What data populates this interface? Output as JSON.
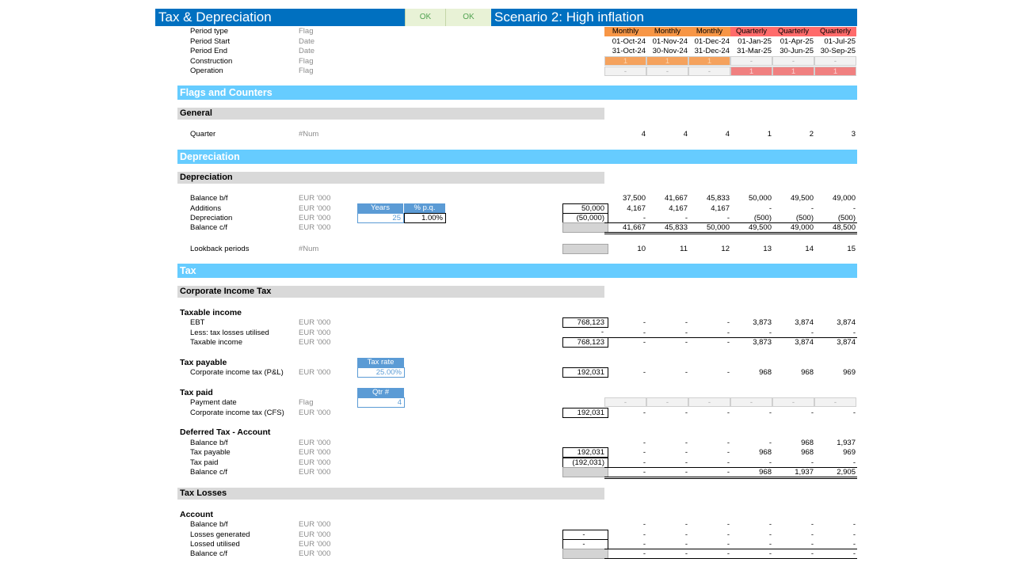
{
  "header": {
    "title": "Tax & Depreciation",
    "ok1": "OK",
    "ok2": "OK",
    "scenario": "Scenario 2: High inflation"
  },
  "timeline": {
    "labels": [
      "Period type",
      "Period Start",
      "Period End",
      "Construction",
      "Operation"
    ],
    "units": [
      "Flag",
      "Date",
      "Date",
      "Flag",
      "Flag"
    ],
    "period_type": [
      "Monthly",
      "Monthly",
      "Monthly",
      "Quarterly",
      "Quarterly",
      "Quarterly"
    ],
    "period_start": [
      "01-Oct-24",
      "01-Nov-24",
      "01-Dec-24",
      "01-Jan-25",
      "01-Apr-25",
      "01-Jul-25"
    ],
    "period_end": [
      "31-Oct-24",
      "30-Nov-24",
      "31-Dec-24",
      "31-Mar-25",
      "30-Jun-25",
      "30-Sep-25"
    ],
    "construction": [
      "1",
      "1",
      "1",
      "-",
      "-",
      "-"
    ],
    "operation": [
      "-",
      "-",
      "-",
      "1",
      "1",
      "1"
    ],
    "colors": {
      "monthly": "#f79646",
      "quarterly": "#ff6b6b",
      "construction": "#f5a25d",
      "operation": "#f08080"
    }
  },
  "flags": {
    "section": "Flags and Counters",
    "general": "General",
    "quarter_label": "Quarter",
    "quarter_unit": "#Num",
    "quarter_values": [
      "4",
      "4",
      "4",
      "1",
      "2",
      "3"
    ]
  },
  "depreciation": {
    "section": "Depreciation",
    "sub": "Depreciation",
    "years_header": "Years",
    "pq_header": "% p.q.",
    "years_value": "25",
    "pq_value": "1.00%",
    "rows": [
      {
        "label": "Balance b/f",
        "unit": "EUR '000",
        "total": "",
        "values": [
          "37,500",
          "41,667",
          "45,833",
          "50,000",
          "49,500",
          "49,000"
        ]
      },
      {
        "label": "Additions",
        "unit": "EUR '000",
        "total": "50,000",
        "values": [
          "4,167",
          "4,167",
          "4,167",
          "-",
          "-",
          "-"
        ]
      },
      {
        "label": "Depreciation",
        "unit": "EUR '000",
        "total": "(50,000)",
        "values": [
          "-",
          "-",
          "-",
          "(500)",
          "(500)",
          "(500)"
        ]
      },
      {
        "label": "Balance c/f",
        "unit": "EUR '000",
        "total": "",
        "values": [
          "41,667",
          "45,833",
          "50,000",
          "49,500",
          "49,000",
          "48,500"
        ]
      }
    ],
    "lookback_label": "Lookback periods",
    "lookback_unit": "#Num",
    "lookback_values": [
      "10",
      "11",
      "12",
      "13",
      "14",
      "15"
    ]
  },
  "tax": {
    "section": "Tax",
    "cit_sub": "Corporate Income Tax",
    "taxable_group": "Taxable income",
    "taxable_rows": [
      {
        "label": "EBT",
        "unit": "EUR '000",
        "total": "768,123",
        "values": [
          "-",
          "-",
          "-",
          "3,873",
          "3,874",
          "3,874"
        ]
      },
      {
        "label": "Less: tax losses utilised",
        "unit": "EUR '000",
        "total": "-",
        "values": [
          "-",
          "-",
          "-",
          "-",
          "-",
          "-"
        ]
      },
      {
        "label": "Taxable income",
        "unit": "EUR '000",
        "total": "768,123",
        "values": [
          "-",
          "-",
          "-",
          "3,873",
          "3,874",
          "3,874"
        ]
      }
    ],
    "payable_group": "Tax payable",
    "tax_rate_header": "Tax rate",
    "tax_rate_value": "25.00%",
    "payable_row": {
      "label": "Corporate income tax (P&L)",
      "unit": "EUR '000",
      "total": "192,031",
      "values": [
        "-",
        "-",
        "-",
        "968",
        "968",
        "969"
      ]
    },
    "paid_group": "Tax paid",
    "qtr_header": "Qtr #",
    "qtr_value": "4",
    "payment_row": {
      "label": "Payment date",
      "unit": "Flag",
      "values": [
        "-",
        "-",
        "-",
        "-",
        "-",
        "-"
      ]
    },
    "paid_row": {
      "label": "Corporate income tax (CFS)",
      "unit": "EUR '000",
      "total": "192,031",
      "values": [
        "-",
        "-",
        "-",
        "-",
        "-",
        "-"
      ]
    },
    "deferred_group": "Deferred Tax - Account",
    "deferred_rows": [
      {
        "label": "Balance b/f",
        "unit": "EUR '000",
        "total": "",
        "values": [
          "-",
          "-",
          "-",
          "-",
          "968",
          "1,937"
        ]
      },
      {
        "label": "Tax payable",
        "unit": "EUR '000",
        "total": "192,031",
        "values": [
          "-",
          "-",
          "-",
          "968",
          "968",
          "969"
        ]
      },
      {
        "label": "Tax paid",
        "unit": "EUR '000",
        "total": "(192,031)",
        "values": [
          "-",
          "-",
          "-",
          "-",
          "-",
          "-"
        ]
      },
      {
        "label": "Balance c/f",
        "unit": "EUR '000",
        "total": "",
        "values": [
          "-",
          "-",
          "-",
          "968",
          "1,937",
          "2,905"
        ]
      }
    ],
    "losses_sub": "Tax Losses",
    "account_group": "Account",
    "account_rows": [
      {
        "label": "Balance b/f",
        "unit": "EUR '000",
        "total": "",
        "values": [
          "-",
          "-",
          "-",
          "-",
          "-",
          "-"
        ]
      },
      {
        "label": "Losses generated",
        "unit": "EUR '000",
        "total": "-",
        "values": [
          "-",
          "-",
          "-",
          "-",
          "-",
          "-"
        ]
      },
      {
        "label": "Lossed utilised",
        "unit": "EUR '000",
        "total": "-",
        "values": [
          "-",
          "-",
          "-",
          "-",
          "-",
          "-"
        ]
      },
      {
        "label": "Balance c/f",
        "unit": "EUR '000",
        "total": "",
        "values": [
          "-",
          "-",
          "-",
          "-",
          "-",
          "-"
        ]
      }
    ]
  }
}
